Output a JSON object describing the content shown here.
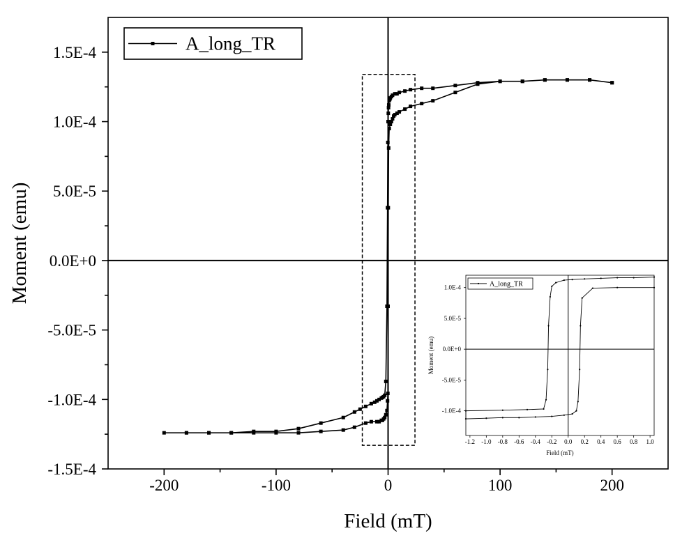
{
  "chart_data": [
    {
      "type": "line",
      "xlabel": "Field (mT)",
      "ylabel": "Moment (emu)",
      "xlim": [
        -250,
        250
      ],
      "ylim": [
        -0.00015,
        0.000175
      ],
      "xticks": [
        -200,
        -100,
        0,
        100,
        200
      ],
      "xtick_labels": [
        "-200",
        "-100",
        "0",
        "100",
        "200"
      ],
      "yticks": [
        -0.00015,
        -0.0001,
        -5e-05,
        0,
        5e-05,
        0.0001,
        0.00015
      ],
      "ytick_labels": [
        "-1.5E-4",
        "-1.0E-4",
        "-5.0E-5",
        "0.0E+0",
        "5.0E-5",
        "1.0E-4",
        "1.5E-4"
      ],
      "grid": false,
      "legend": "top-left",
      "zero_lines": true,
      "series": [
        {
          "name": "A_long_TR",
          "color": "#000000",
          "marker": "square",
          "x": [
            200,
            180,
            160,
            140,
            120,
            100,
            80,
            60,
            40,
            30,
            20,
            15,
            10,
            8,
            6,
            4,
            3,
            2,
            1.5,
            1,
            0.6,
            0.4,
            0.2,
            0,
            -0.2,
            -0.5,
            -1,
            -2,
            -3,
            -4,
            -5,
            -6,
            -8,
            -10,
            -12,
            -15,
            -20,
            -25,
            -30,
            -40,
            -60,
            -80,
            -100,
            -120,
            -140,
            -160,
            -180,
            -200,
            -180,
            -160,
            -140,
            -120,
            -100,
            -80,
            -60,
            -40,
            -30,
            -20,
            -15,
            -10,
            -8,
            -6,
            -5,
            -4,
            -3,
            -2,
            -1,
            -0.5,
            -0.2,
            0,
            0.2,
            0.5,
            1,
            2,
            3,
            4,
            5,
            6,
            8,
            10,
            15,
            20,
            30,
            40,
            60,
            80,
            100,
            120,
            140,
            160,
            180,
            200
          ],
          "y": [
            0.000128,
            0.00013,
            0.00013,
            0.00013,
            0.000129,
            0.000129,
            0.000128,
            0.000126,
            0.000124,
            0.000124,
            0.000123,
            0.000122,
            0.000121,
            0.00012,
            0.00012,
            0.000119,
            0.000118,
            0.000117,
            0.000116,
            0.000115,
            0.000112,
            0.00011,
            0.000106,
            0.0001,
            8.5e-05,
            3.8e-05,
            -3.29e-05,
            -8.7e-05,
            -9.7e-05,
            -9.8e-05,
            -9.85e-05,
            -9.9e-05,
            -0.0001,
            -0.000101,
            -0.000102,
            -0.000103,
            -0.000105,
            -0.000107,
            -0.000109,
            -0.000113,
            -0.000117,
            -0.000121,
            -0.000123,
            -0.000123,
            -0.000124,
            -0.000124,
            -0.000124,
            -0.000124,
            -0.000124,
            -0.000124,
            -0.000124,
            -0.000124,
            -0.000124,
            -0.000124,
            -0.000123,
            -0.000122,
            -0.00012,
            -0.000117,
            -0.000116,
            -0.000116,
            -0.000116,
            -0.000115,
            -0.000115,
            -0.000114,
            -0.000113,
            -0.000111,
            -0.000108,
            -0.000101,
            -9.56e-05,
            -3.29e-05,
            3.8e-05,
            8.1e-05,
            9.5e-05,
            9.8e-05,
            0.0001,
            0.000102,
            0.000104,
            0.000105,
            0.000106,
            0.000107,
            0.000109,
            0.000111,
            0.000113,
            0.000115,
            0.000121,
            0.000127,
            0.000129,
            0.000129,
            0.00013,
            0.00013,
            0.00013,
            0.000128
          ]
        }
      ],
      "annotations": [
        {
          "type": "dashed-rectangle",
          "x_range": [
            -23,
            24
          ],
          "y_range": [
            -0.000133,
            0.000134
          ]
        }
      ]
    },
    {
      "type": "line",
      "role": "inset",
      "xlabel": "Field (mT)",
      "ylabel": "Moment (emu)",
      "xlim": [
        -1.25,
        1.05
      ],
      "ylim": [
        -0.00014,
        0.00012
      ],
      "xticks": [
        -1.2,
        -1.0,
        -0.8,
        -0.6,
        -0.4,
        -0.2,
        0.0,
        0.2,
        0.4,
        0.6,
        0.8,
        1.0
      ],
      "xtick_labels": [
        "-1.2",
        "-1.0",
        "-0.8",
        "-0.6",
        "-0.4",
        "-0.2",
        "0.0",
        "0.2",
        "0.4",
        "0.6",
        "0.8",
        "1.0"
      ],
      "yticks": [
        -0.0001,
        -5e-05,
        0,
        5e-05,
        0.0001
      ],
      "ytick_labels": [
        "-1.0E-4",
        "-5.0E-5",
        "0.0E+0",
        "5.0E-5",
        "1.0E-4"
      ],
      "grid": false,
      "legend": "top-left",
      "zero_lines": true,
      "series": [
        {
          "name": "A_long_TR",
          "color": "#000000",
          "marker": "dot",
          "x": [
            1.05,
            0.8,
            0.6,
            0.4,
            0.2,
            0.05,
            -0.05,
            -0.15,
            -0.2,
            -0.22,
            -0.24,
            -0.25,
            -0.27,
            -0.3,
            -0.5,
            -0.8,
            -1.25,
            -1.25,
            -1.0,
            -0.8,
            -0.6,
            -0.4,
            -0.2,
            -0.05,
            0.05,
            0.1,
            0.12,
            0.14,
            0.15,
            0.17,
            0.3,
            0.6,
            1.05
          ],
          "y": [
            0.000117,
            0.000116,
            0.000116,
            0.000115,
            0.000114,
            0.000113,
            0.000112,
            0.000108,
            0.000102,
            8.5e-05,
            3.8e-05,
            -3.29e-05,
            -8.2e-05,
            -9.7e-05,
            -9.8e-05,
            -9.9e-05,
            -0.0001,
            -0.000113,
            -0.000112,
            -0.000111,
            -0.000111,
            -0.00011,
            -0.000109,
            -0.000107,
            -0.000105,
            -0.0001,
            -8.5e-05,
            -3.29e-05,
            3.8e-05,
            8.3e-05,
            9.9e-05,
            0.0001,
            0.0001
          ]
        }
      ]
    }
  ]
}
